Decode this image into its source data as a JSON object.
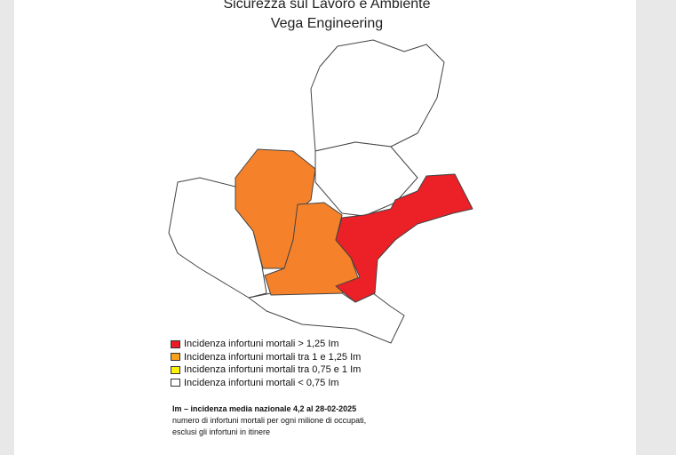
{
  "header": {
    "title": "Sicurezza sul Lavoro e Ambiente",
    "subtitle": "Vega Engineering"
  },
  "legend": [
    {
      "label": "Incidenza infortuni mortali > 1,25 Im",
      "color": "#ec1c24"
    },
    {
      "label": "Incidenza infortuni mortali tra 1 e 1,25 Im",
      "color": "#f7a21b"
    },
    {
      "label": "Incidenza infortuni mortali tra 0,75 e 1 Im",
      "color": "#fff200"
    },
    {
      "label": "Incidenza infortuni mortali < 0,75 Im",
      "color": "#ffffff"
    }
  ],
  "note": [
    "Im – incidenza media nazionale 4,2 al 28-02-2025",
    "numero di infortuni mortali per ogni milione di occupati,",
    "esclusi gli infortuni in itinere"
  ]
}
